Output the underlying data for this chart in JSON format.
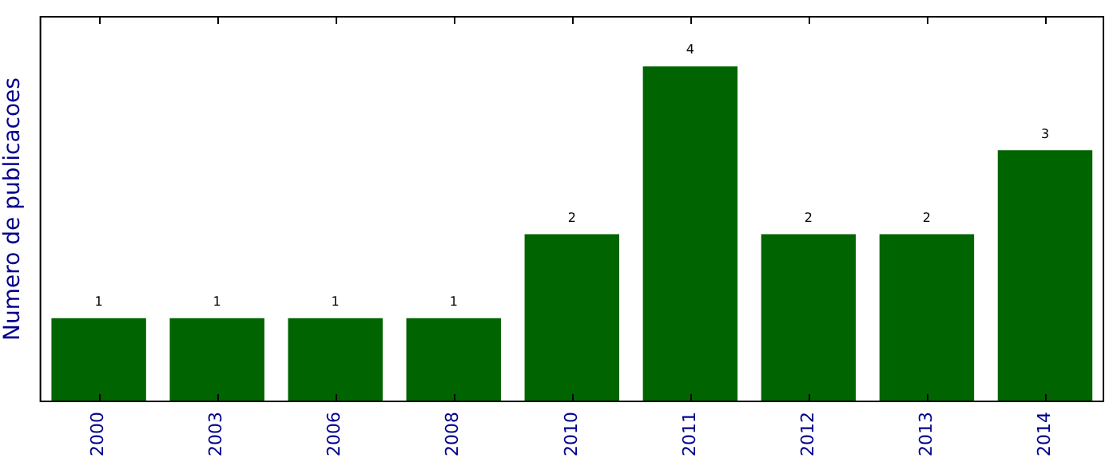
{
  "chart_data": {
    "type": "bar",
    "ylabel": "Numero de publicacoes",
    "categories": [
      "2000",
      "2003",
      "2006",
      "2008",
      "2010",
      "2011",
      "2012",
      "2013",
      "2014"
    ],
    "values": [
      1,
      1,
      1,
      1,
      2,
      4,
      2,
      2,
      3
    ],
    "color": "#006400",
    "ylim": [
      0,
      4.6
    ],
    "tick_labels": "x",
    "data_labels": true,
    "grid": false,
    "legend": false
  }
}
